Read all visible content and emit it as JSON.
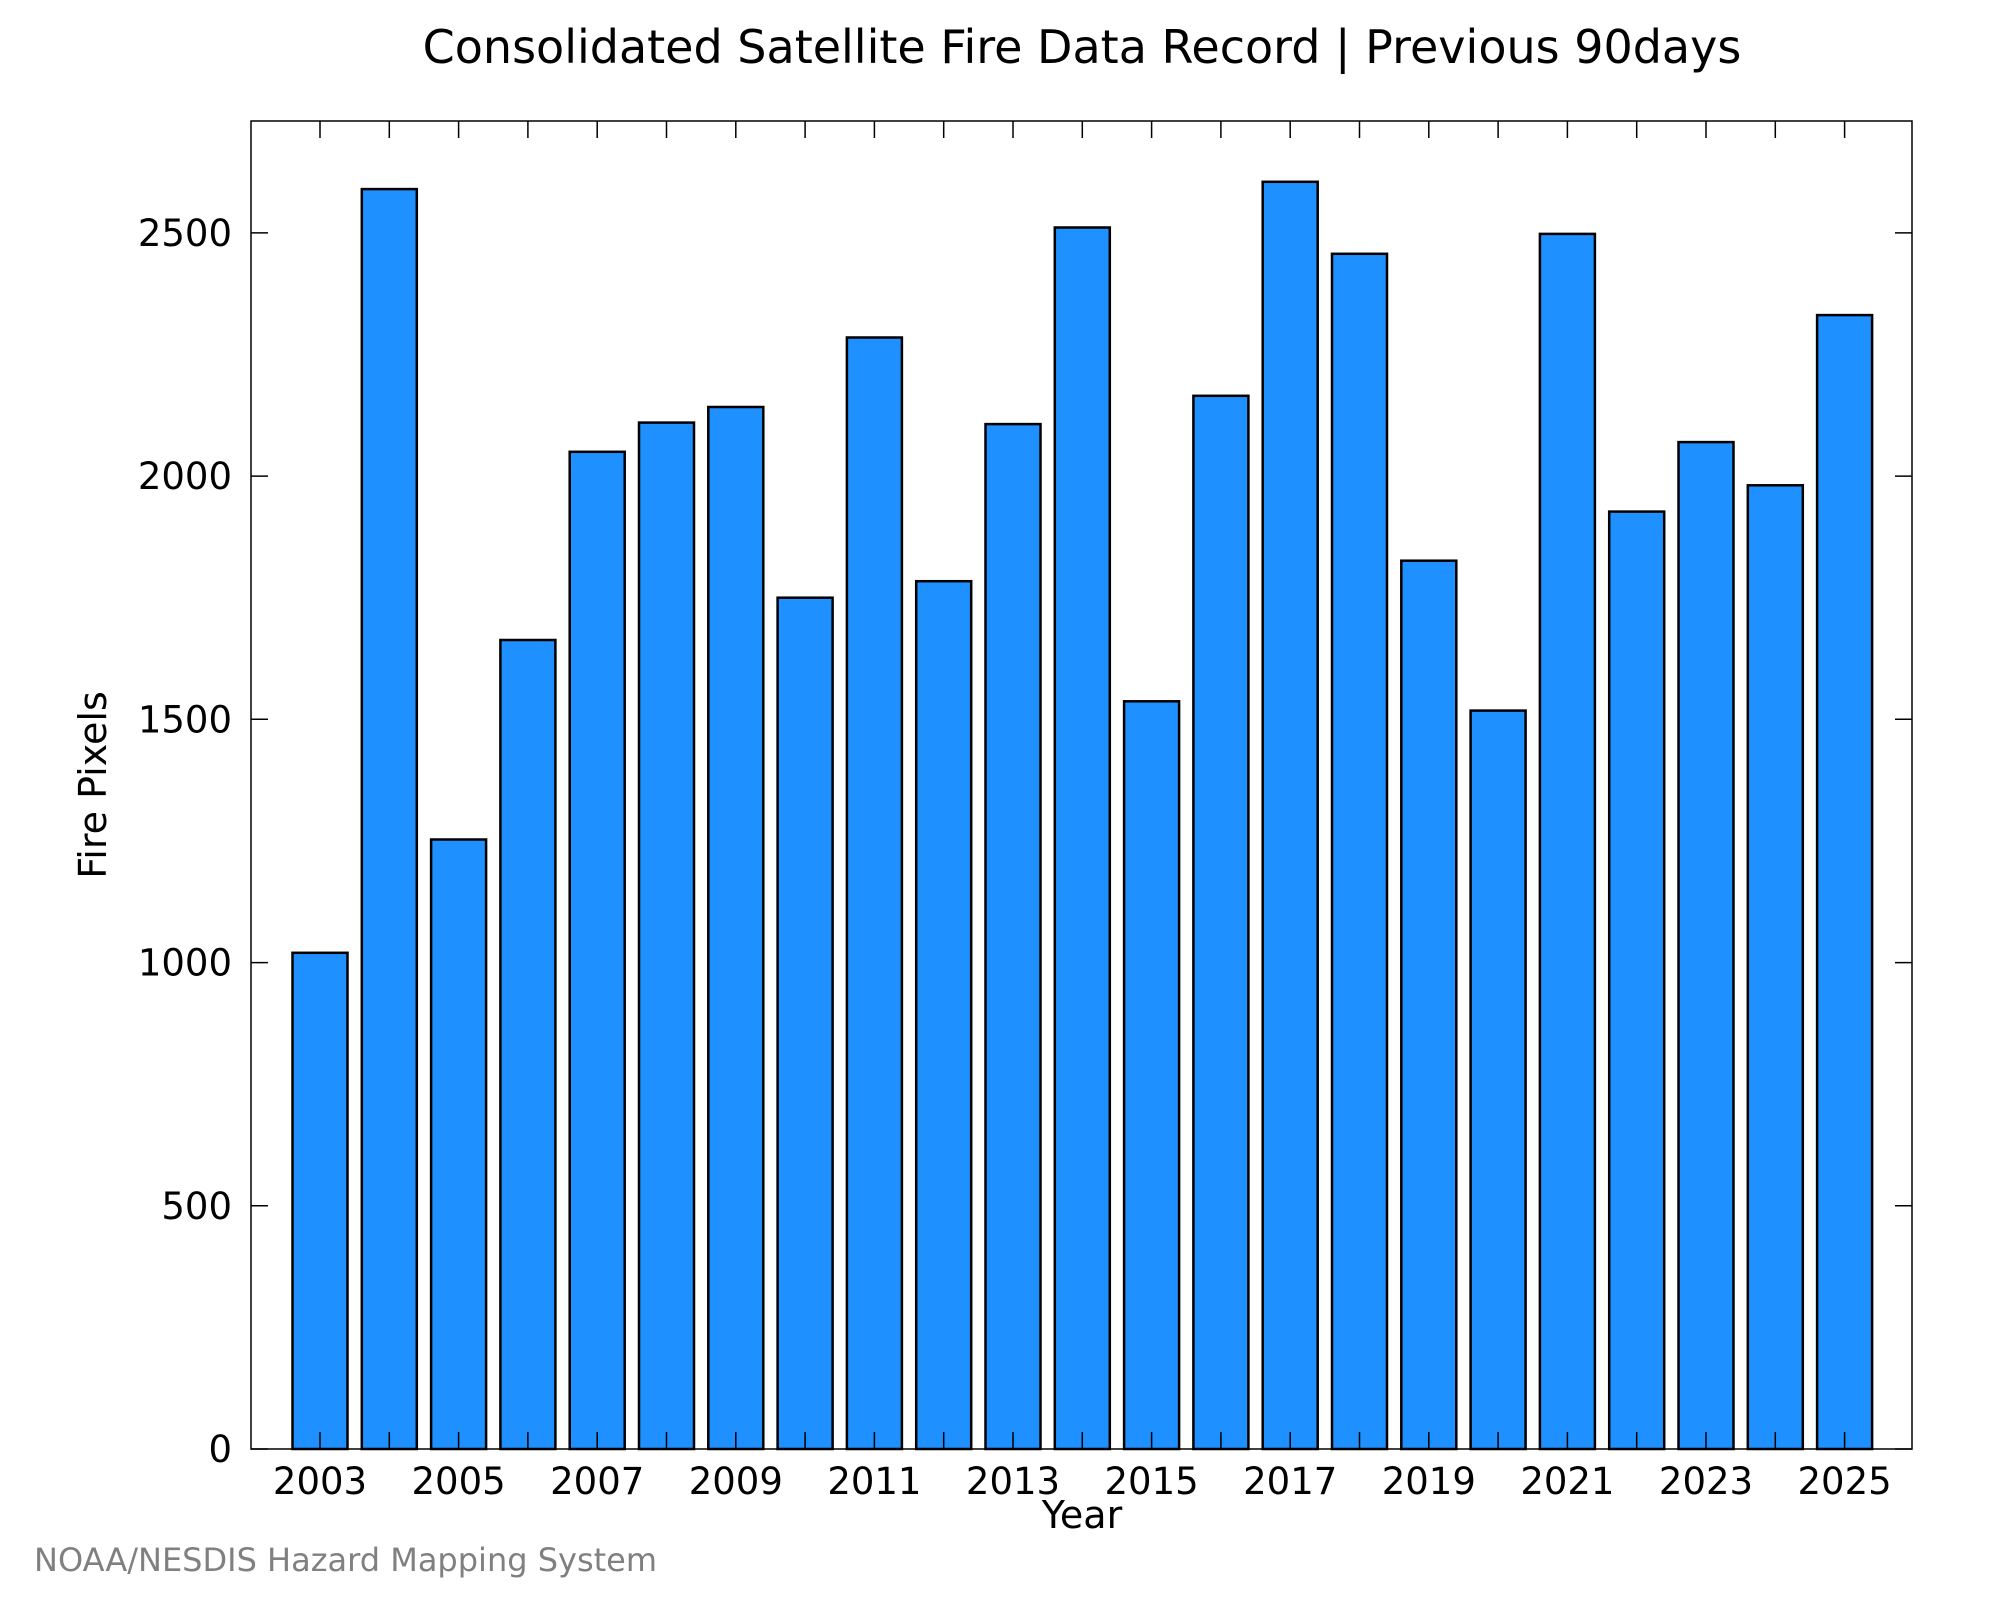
{
  "chart_data": {
    "type": "bar",
    "title": "Consolidated Satellite Fire Data Record | Previous 90days",
    "xlabel": "Year",
    "ylabel": "Fire Pixels",
    "categories": [
      "2003",
      "2004",
      "2005",
      "2006",
      "2007",
      "2008",
      "2009",
      "2010",
      "2011",
      "2012",
      "2013",
      "2014",
      "2015",
      "2016",
      "2017",
      "2018",
      "2019",
      "2020",
      "2021",
      "2022",
      "2023",
      "2024",
      "2025"
    ],
    "values": [
      1020,
      2590,
      1253,
      1663,
      2050,
      2110,
      2142,
      1750,
      2285,
      1784,
      2107,
      2511,
      1537,
      2165,
      2605,
      2457,
      1826,
      1518,
      2498,
      1927,
      2070,
      1981,
      2331
    ],
    "x_tick_labels": [
      "2003",
      "2005",
      "2007",
      "2009",
      "2011",
      "2013",
      "2015",
      "2017",
      "2019",
      "2021",
      "2023",
      "2025"
    ],
    "y_ticks": [
      0,
      500,
      1000,
      1500,
      2000,
      2500
    ],
    "ylim": [
      0,
      2730
    ],
    "grid": false,
    "bar_color": "#1e90ff",
    "bar_edge_color": "#000000",
    "credit": "NOAA/NESDIS Hazard Mapping System"
  }
}
